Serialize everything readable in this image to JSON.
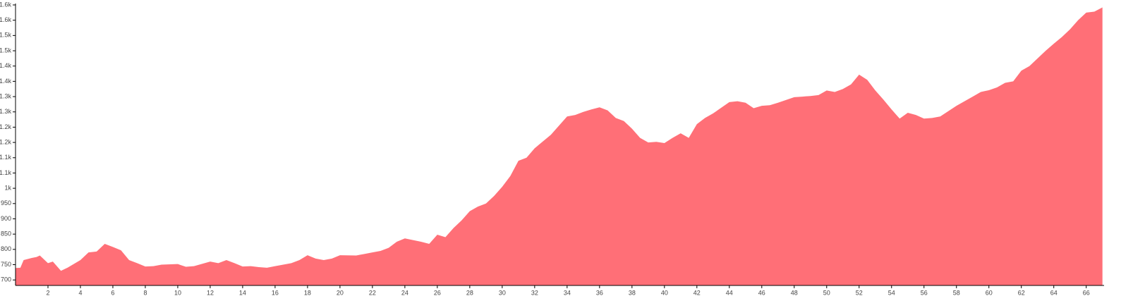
{
  "chart_data": {
    "type": "area",
    "color": "#ff6f77",
    "x": [
      0,
      0.3,
      0.5,
      1,
      1.3,
      1.5,
      2,
      2.3,
      2.8,
      3.2,
      4,
      4.5,
      5,
      5.5,
      6,
      6.5,
      7,
      7.5,
      8,
      8.5,
      9,
      10,
      10.5,
      11,
      12,
      12.5,
      13,
      13.5,
      14,
      14.5,
      15,
      15.5,
      16,
      17,
      17.5,
      18,
      18.5,
      19,
      19.5,
      20,
      21,
      21.5,
      22,
      22.5,
      23,
      23.5,
      24,
      25,
      25.5,
      26,
      26.5,
      27,
      27.5,
      28,
      28.5,
      29,
      29.5,
      30,
      30.5,
      31,
      31.5,
      32,
      33,
      33.5,
      34,
      34.5,
      35,
      35.5,
      36,
      36.5,
      37,
      37.5,
      38,
      38.5,
      39,
      39.5,
      40,
      40.5,
      41,
      41.5,
      42,
      42.5,
      43,
      44,
      44.5,
      45,
      45.5,
      46,
      46.5,
      47,
      48,
      48.5,
      49,
      49.5,
      50,
      50.5,
      51,
      51.5,
      52,
      52.5,
      53,
      53.5,
      54,
      54.5,
      55,
      55.5,
      56,
      56.5,
      57,
      58,
      59,
      59.5,
      60,
      60.5,
      61,
      61.5,
      62,
      62.5,
      63,
      63.5,
      64,
      64.5,
      65,
      65.5,
      66,
      66.5,
      67
    ],
    "values": [
      739,
      740,
      765,
      772,
      775,
      780,
      755,
      760,
      730,
      740,
      765,
      790,
      793,
      818,
      808,
      797,
      765,
      755,
      744,
      745,
      750,
      752,
      743,
      745,
      760,
      755,
      765,
      755,
      744,
      745,
      742,
      740,
      745,
      755,
      765,
      781,
      770,
      765,
      770,
      781,
      780,
      785,
      790,
      795,
      805,
      825,
      836,
      825,
      818,
      848,
      840,
      870,
      895,
      925,
      940,
      950,
      975,
      1005,
      1040,
      1090,
      1100,
      1131,
      1175,
      1205,
      1235,
      1240,
      1250,
      1258,
      1265,
      1255,
      1230,
      1220,
      1195,
      1165,
      1150,
      1152,
      1148,
      1165,
      1180,
      1165,
      1210,
      1230,
      1245,
      1282,
      1285,
      1280,
      1262,
      1270,
      1272,
      1280,
      1298,
      1300,
      1302,
      1305,
      1320,
      1315,
      1325,
      1340,
      1372,
      1355,
      1320,
      1290,
      1258,
      1228,
      1247,
      1240,
      1228,
      1230,
      1235,
      1270,
      1300,
      1315,
      1321,
      1330,
      1345,
      1350,
      1385,
      1400,
      1425,
      1450,
      1473,
      1495,
      1520,
      1550,
      1575,
      1578,
      1592
    ],
    "xlim": [
      0,
      67.1
    ],
    "ylim": [
      682,
      1600
    ],
    "xticks": [
      2,
      4,
      6,
      8,
      10,
      12,
      14,
      16,
      18,
      20,
      22,
      24,
      26,
      28,
      30,
      32,
      34,
      36,
      38,
      40,
      42,
      44,
      46,
      48,
      50,
      52,
      54,
      56,
      58,
      60,
      62,
      64,
      66
    ],
    "yticks": [
      700,
      750,
      800,
      850,
      900,
      950,
      {
        "value": 1000,
        "label": "1k"
      },
      {
        "value": 1050,
        "label": "1.1k"
      },
      {
        "value": 1100,
        "label": "1.1k"
      },
      {
        "value": 1150,
        "label": "1.2k"
      },
      {
        "value": 1200,
        "label": "1.2k"
      },
      {
        "value": 1250,
        "label": "1.3k"
      },
      {
        "value": 1300,
        "label": "1.3k"
      },
      {
        "value": 1350,
        "label": "1.4k"
      },
      {
        "value": 1400,
        "label": "1.4k"
      },
      {
        "value": 1450,
        "label": "1.5k"
      },
      {
        "value": 1500,
        "label": "1.5k"
      },
      {
        "value": 1550,
        "label": "1.6k"
      },
      {
        "value": 1600,
        "label": "1.6k"
      }
    ]
  }
}
